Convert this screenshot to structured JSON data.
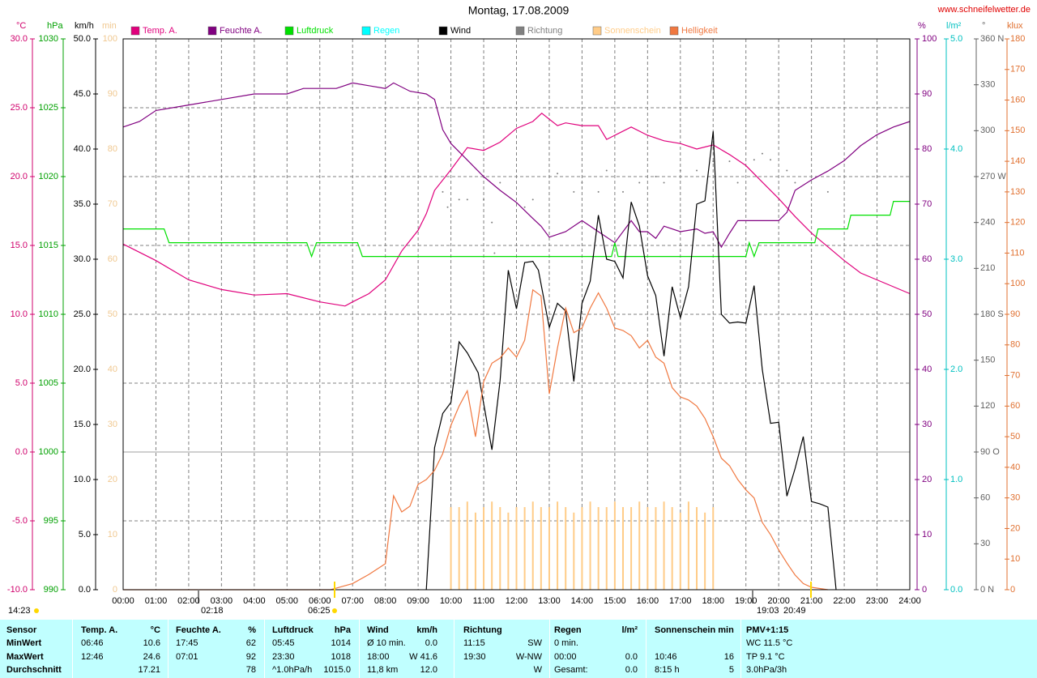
{
  "chart_data": {
    "type": "line",
    "title": "Montag, 17.08.2009",
    "source": "www.schneifelwetter.de",
    "xlim": [
      0,
      24
    ],
    "xticks": [
      {
        "value": 0,
        "label": "00:00"
      },
      {
        "value": 1,
        "label": "01:00"
      },
      {
        "value": 2,
        "label": "02:00"
      },
      {
        "value": 3,
        "label": "03:00"
      },
      {
        "value": 4,
        "label": "04:00"
      },
      {
        "value": 5,
        "label": "05:00"
      },
      {
        "value": 6,
        "label": "06:00"
      },
      {
        "value": 7,
        "label": "07:00"
      },
      {
        "value": 8,
        "label": "08:00"
      },
      {
        "value": 9,
        "label": "09:00"
      },
      {
        "value": 10,
        "label": "10:00"
      },
      {
        "value": 11,
        "label": "11:00"
      },
      {
        "value": 12,
        "label": "12:00"
      },
      {
        "value": 13,
        "label": "13:00"
      },
      {
        "value": 14,
        "label": "14:00"
      },
      {
        "value": 15,
        "label": "15:00"
      },
      {
        "value": 16,
        "label": "16:00"
      },
      {
        "value": 17,
        "label": "17:00"
      },
      {
        "value": 18,
        "label": "18:00"
      },
      {
        "value": 19,
        "label": "19:00"
      },
      {
        "value": 20,
        "label": "20:00"
      },
      {
        "value": 21,
        "label": "21:00"
      },
      {
        "value": 22,
        "label": "22:00"
      },
      {
        "value": 23,
        "label": "23:00"
      },
      {
        "value": 24,
        "label": "24:00"
      }
    ],
    "grid": true,
    "axes": [
      {
        "label": "°C",
        "color": "#d0006c",
        "side": "left",
        "lim": [
          -10,
          30
        ],
        "ticks": [
          {
            "value": -10,
            "label": "-10.0"
          },
          {
            "value": -5,
            "label": "-5.0"
          },
          {
            "value": 0,
            "label": "0.0"
          },
          {
            "value": 5,
            "label": "5.0"
          },
          {
            "value": 10,
            "label": "10.0"
          },
          {
            "value": 15,
            "label": "15.0"
          },
          {
            "value": 20,
            "label": "20.0"
          },
          {
            "value": 25,
            "label": "25.0"
          },
          {
            "value": 30,
            "label": "30.0"
          }
        ]
      },
      {
        "label": "hPa",
        "color": "#00a000",
        "side": "left",
        "lim": [
          990,
          1030
        ],
        "ticks": [
          990,
          995,
          1000,
          1005,
          1010,
          1015,
          1020,
          1025,
          1030
        ]
      },
      {
        "label": "km/h",
        "color": "#000000",
        "side": "left",
        "lim": [
          0,
          50
        ],
        "ticks": [
          {
            "value": 0,
            "label": "0.0"
          },
          {
            "value": 5,
            "label": "5.0"
          },
          {
            "value": 10,
            "label": "10.0"
          },
          {
            "value": 15,
            "label": "15.0"
          },
          {
            "value": 20,
            "label": "20.0"
          },
          {
            "value": 25,
            "label": "25.0"
          },
          {
            "value": 30,
            "label": "30.0"
          },
          {
            "value": 35,
            "label": "35.0"
          },
          {
            "value": 40,
            "label": "40.0"
          },
          {
            "value": 45,
            "label": "45.0"
          },
          {
            "value": 50,
            "label": "50.0"
          }
        ]
      },
      {
        "label": "min",
        "color": "#f0c890",
        "side": "left",
        "lim": [
          0,
          100
        ],
        "ticks": [
          0,
          10,
          20,
          30,
          40,
          50,
          60,
          70,
          80,
          90,
          100
        ]
      },
      {
        "label": "%",
        "color": "#800080",
        "side": "right",
        "lim": [
          0,
          100
        ],
        "ticks": [
          0,
          10,
          20,
          30,
          40,
          50,
          60,
          70,
          80,
          90,
          100
        ]
      },
      {
        "label": "l/m²",
        "color": "#00c0c0",
        "side": "right",
        "lim": [
          0,
          5
        ],
        "ticks": [
          {
            "value": 0,
            "label": "0.0"
          },
          {
            "value": 1,
            "label": "1.0"
          },
          {
            "value": 2,
            "label": "2.0"
          },
          {
            "value": 3,
            "label": "3.0"
          },
          {
            "value": 4,
            "label": "4.0"
          },
          {
            "value": 5,
            "label": "5.0"
          }
        ]
      },
      {
        "label": "°",
        "color": "#606060",
        "side": "right",
        "lim": [
          0,
          360
        ],
        "ticks": [
          {
            "value": 0,
            "label": "0 N"
          },
          30,
          60,
          {
            "value": 90,
            "label": "90 O"
          },
          120,
          150,
          {
            "value": 180,
            "label": "180 S"
          },
          210,
          240,
          {
            "value": 270,
            "label": "270 W"
          },
          300,
          330,
          {
            "value": 360,
            "label": "360 N"
          }
        ]
      },
      {
        "label": "klux",
        "color": "#e07030",
        "side": "right",
        "lim": [
          0,
          180
        ],
        "ticks": [
          0,
          10,
          20,
          30,
          40,
          50,
          60,
          70,
          80,
          90,
          100,
          110,
          120,
          130,
          140,
          150,
          160,
          170,
          180
        ]
      }
    ],
    "series": [
      {
        "name": "Temp. A.",
        "type": "line",
        "color": "#e0007c",
        "axis": 0,
        "x": [
          0,
          1,
          2,
          3,
          4,
          5,
          6,
          6.77,
          7,
          7.5,
          8,
          8.5,
          9,
          9.25,
          9.5,
          10,
          10.5,
          11,
          11.5,
          12,
          12.5,
          12.77,
          13.25,
          13.5,
          14,
          14.5,
          14.75,
          15,
          15.5,
          16,
          16.5,
          17,
          17.5,
          18,
          18.5,
          19,
          19.5,
          20,
          20.5,
          21,
          21.5,
          22,
          22.5,
          23,
          24
        ],
        "values": [
          15.1,
          13.9,
          12.5,
          11.8,
          11.4,
          11.5,
          10.9,
          10.6,
          10.9,
          11.5,
          12.5,
          14.6,
          16.1,
          17.3,
          19,
          20.5,
          22.1,
          21.9,
          22.5,
          23.5,
          24,
          24.6,
          23.7,
          23.9,
          23.7,
          23.7,
          22.7,
          23,
          23.6,
          23,
          22.6,
          22.4,
          22,
          22.3,
          21.6,
          20.8,
          19.6,
          18.4,
          17.1,
          15.9,
          14.9,
          13.9,
          13,
          12.5,
          11.5
        ]
      },
      {
        "name": "Feuchte A.",
        "type": "line",
        "color": "#800080",
        "axis": 4,
        "x": [
          0,
          0.5,
          1,
          2,
          3,
          4,
          5,
          5.5,
          6.5,
          7,
          7.5,
          8,
          8.25,
          8.75,
          9.25,
          9.5,
          9.75,
          10,
          10.5,
          11,
          11.5,
          12,
          12.5,
          12.75,
          13,
          13.5,
          14,
          14.5,
          15,
          15.5,
          15.75,
          16,
          16.25,
          16.5,
          17,
          17.5,
          17.75,
          18,
          18.25,
          18.5,
          18.75,
          19.5,
          20,
          20.25,
          20.5,
          21,
          21.5,
          22,
          22.5,
          23,
          23.5,
          24
        ],
        "values": [
          84,
          85,
          87,
          88,
          89,
          90,
          90,
          91,
          91,
          92,
          91.5,
          91,
          92,
          90.5,
          90,
          89,
          83.5,
          81,
          78,
          75,
          72.5,
          70.3,
          67.4,
          66,
          64,
          65,
          67,
          65,
          63,
          67,
          65,
          65,
          63.8,
          66,
          65,
          65.5,
          64.7,
          65,
          62.2,
          64.7,
          67,
          67,
          67,
          68.5,
          72.5,
          74.4,
          76,
          77.9,
          80.6,
          82.6,
          84,
          85
        ]
      },
      {
        "name": "Luftdruck",
        "type": "line",
        "color": "#00e000",
        "axis": 1,
        "x": [
          0,
          1.25,
          1.4,
          5.6,
          5.75,
          5.9,
          7.15,
          7.3,
          14.9,
          15,
          15.1,
          19,
          19.1,
          19.25,
          19.4,
          21.1,
          21.2,
          22.1,
          22.2,
          23.4,
          23.5,
          24
        ],
        "values": [
          1016.2,
          1016.2,
          1015.2,
          1015.2,
          1014.2,
          1015.2,
          1015.2,
          1014.2,
          1014.2,
          1015.2,
          1014.2,
          1014.2,
          1015.2,
          1014.2,
          1015.2,
          1015.2,
          1016.2,
          1016.2,
          1017.2,
          1017.2,
          1018.2,
          1018.2
        ]
      },
      {
        "name": "Regen",
        "type": "bar",
        "color": "#00ffff",
        "axis": 5,
        "x": [],
        "values": []
      },
      {
        "name": "Wind",
        "type": "line",
        "color": "#000000",
        "axis": 2,
        "x": [
          9.25,
          9.5,
          9.75,
          10,
          10.25,
          10.5,
          10.83,
          11.25,
          11.5,
          11.75,
          12,
          12.25,
          12.5,
          12.67,
          13,
          13.25,
          13.5,
          13.75,
          14,
          14.25,
          14.5,
          14.75,
          15,
          15.25,
          15.5,
          15.75,
          16,
          16.25,
          16.5,
          16.75,
          17,
          17.25,
          17.5,
          17.75,
          18,
          18.25,
          18.5,
          18.75,
          19,
          19.25,
          19.5,
          19.75,
          20,
          20.25,
          20.5,
          20.75,
          21,
          21.25,
          21.5,
          21.75
        ],
        "values": [
          0,
          12.9,
          16,
          17,
          22.5,
          21.5,
          19.7,
          12.7,
          19,
          29,
          25.5,
          29.7,
          29.8,
          29,
          23.8,
          26,
          25.3,
          18.9,
          26,
          28,
          34,
          30,
          29.8,
          28.3,
          35.2,
          33,
          28.5,
          26.7,
          21.2,
          27.5,
          24.7,
          27.5,
          35,
          35.3,
          41.6,
          25,
          24.2,
          24.3,
          24.2,
          27.6,
          20,
          15.1,
          15.2,
          8.5,
          11,
          13.9,
          8,
          7.8,
          7.5,
          0
        ]
      },
      {
        "name": "Richtung",
        "type": "scatter",
        "color": "#808080",
        "axis": 6,
        "x": [
          9.75,
          9.9,
          10.25,
          10.5,
          11,
          11.25,
          11.33,
          11.5,
          12.25,
          12.5,
          13.25,
          13.75,
          14,
          14.5,
          14.75,
          15.25,
          15.75,
          16.25,
          16.5,
          17,
          17.5,
          18,
          18.5,
          18.75,
          19.25,
          19.5,
          19.75,
          20.25,
          20.5,
          21.5
        ],
        "values": [
          260,
          250,
          255,
          255,
          255,
          240,
          220,
          266,
          250,
          255,
          272,
          260,
          266,
          260,
          274,
          260,
          266,
          270,
          266,
          274,
          274,
          280,
          280,
          266,
          281,
          285,
          281,
          274,
          266,
          260
        ]
      },
      {
        "name": "Sonnenschein",
        "type": "bar",
        "color": "#ffcc88",
        "axis": 3,
        "x": [
          10,
          10.25,
          10.5,
          10.75,
          11,
          11.25,
          11.5,
          11.75,
          12,
          12.25,
          12.5,
          12.75,
          13,
          13.25,
          13.5,
          13.75,
          14,
          14.25,
          14.5,
          14.75,
          15,
          15.25,
          15.5,
          15.75,
          16,
          16.25,
          16.5,
          16.75,
          17,
          17.25,
          17.5,
          17.75,
          18
        ],
        "values": [
          15,
          15,
          16,
          14,
          15,
          16,
          15,
          14,
          15,
          15,
          16,
          15,
          15,
          16,
          15,
          14,
          15,
          16,
          15,
          15,
          16,
          15,
          15,
          16,
          15,
          15,
          16,
          15,
          14,
          16,
          15,
          14,
          15
        ]
      },
      {
        "name": "Helligkeit",
        "type": "line",
        "color": "#f07840",
        "axis": 7,
        "x": [
          0,
          6.33,
          6.5,
          7,
          7.5,
          8,
          8.25,
          8.5,
          8.75,
          9,
          9.25,
          9.5,
          9.75,
          10,
          10.25,
          10.5,
          10.75,
          11,
          11.25,
          11.5,
          11.75,
          12,
          12.25,
          12.5,
          12.75,
          13,
          13.25,
          13.5,
          13.75,
          14,
          14.25,
          14.5,
          14.75,
          15,
          15.25,
          15.5,
          15.75,
          16,
          16.25,
          16.5,
          16.75,
          17,
          17.25,
          17.5,
          17.75,
          18,
          18.25,
          18.5,
          18.75,
          19,
          19.25,
          19.5,
          19.75,
          20,
          20.25,
          20.5,
          20.75,
          21,
          21.5
        ],
        "values": [
          0,
          0,
          0.5,
          2,
          5,
          8.5,
          30.7,
          25.4,
          27.3,
          34.4,
          36,
          39,
          44.5,
          53.7,
          60,
          65,
          50,
          68,
          74,
          75.7,
          79,
          76,
          81.5,
          98,
          96,
          64,
          79,
          92,
          84,
          85.5,
          92,
          97,
          92,
          85.5,
          84.7,
          83,
          79,
          81.5,
          76,
          74,
          66,
          63,
          62,
          60,
          56,
          50,
          43,
          40.5,
          36,
          32.6,
          30,
          22,
          18,
          13,
          8.7,
          4.8,
          2,
          0.8,
          0
        ]
      }
    ],
    "annotations": [
      "14:23",
      "02:18",
      "06:25",
      "19:03",
      "20:49"
    ]
  },
  "table": {
    "header": {
      "c0": "Sensor",
      "t1": "Temp. A.",
      "t2": "°C",
      "f1": "Feuchte A.",
      "f2": "%",
      "l1": "Luftdruck",
      "l2": "hPa",
      "w1": "Wind",
      "w2": "km/h",
      "r1": "Richtung",
      "g1": "Regen",
      "g2": "l/m²",
      "s1": "Sonnenschein min",
      "p": "PMV+1:15"
    },
    "rows": [
      {
        "c0": "MinWert",
        "t1": "06:46",
        "t2": "10.6",
        "f1": "17:45",
        "f2": "62",
        "l1": "05:45",
        "l2": "1014",
        "w1": "Ø 10 min.",
        "w2": "0.0",
        "r1": "11:15",
        "r2": "SW",
        "g1": "0 min.",
        "p": "WC 11.5 °C"
      },
      {
        "c0": "MaxWert",
        "t1": "12:46",
        "t2": "24.6",
        "f1": "07:01",
        "f2": "92",
        "l1": "23:30",
        "l2": "1018",
        "w1": "18:00",
        "w2": "W 41.6",
        "r1": "19:30",
        "r2": "W-NW",
        "g1": "00:00",
        "g2": "0.0",
        "s1": "10:46",
        "s2": "16",
        "p": "TP 9.1 °C"
      },
      {
        "c0": "Durchschnitt",
        "t2": "17.21",
        "f2": "78",
        "l1": "^1.0hPa/h",
        "l2": "1015.0",
        "w1": "11,8 km",
        "w2": "12.0",
        "r2": "W",
        "g1": "Gesamt:",
        "g2": "0.0",
        "s1": "8:15 h",
        "s2": "5",
        "p": "3.0hPa/3h"
      }
    ]
  }
}
